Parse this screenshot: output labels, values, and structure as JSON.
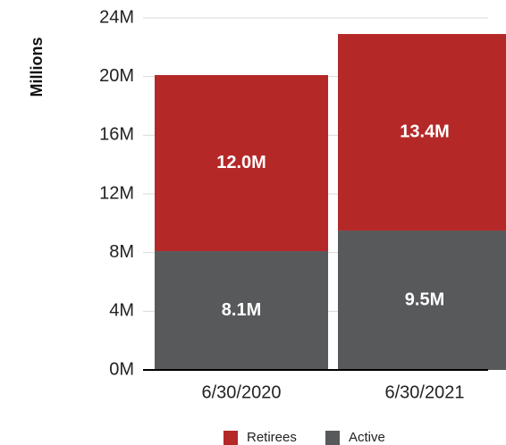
{
  "chart_data": {
    "type": "bar",
    "stacked": true,
    "categories": [
      "6/30/2020",
      "6/30/2021"
    ],
    "series": [
      {
        "name": "Active",
        "values": [
          8.1,
          9.5
        ],
        "labels": [
          "8.1M",
          "9.5M"
        ],
        "color": "#58595b"
      },
      {
        "name": "Retirees",
        "values": [
          12.0,
          13.4
        ],
        "labels": [
          "12.0M",
          "13.4M"
        ],
        "color": "#b52828"
      }
    ],
    "ylabel": "Millions",
    "ylim": [
      0,
      24
    ],
    "yticks": [
      0,
      4,
      8,
      12,
      16,
      20,
      24
    ],
    "ytick_labels": [
      "0M",
      "4M",
      "8M",
      "12M",
      "16M",
      "20M",
      "24M"
    ],
    "grid": true,
    "legend": {
      "position": "bottom",
      "order": [
        "Retirees",
        "Active"
      ]
    }
  }
}
